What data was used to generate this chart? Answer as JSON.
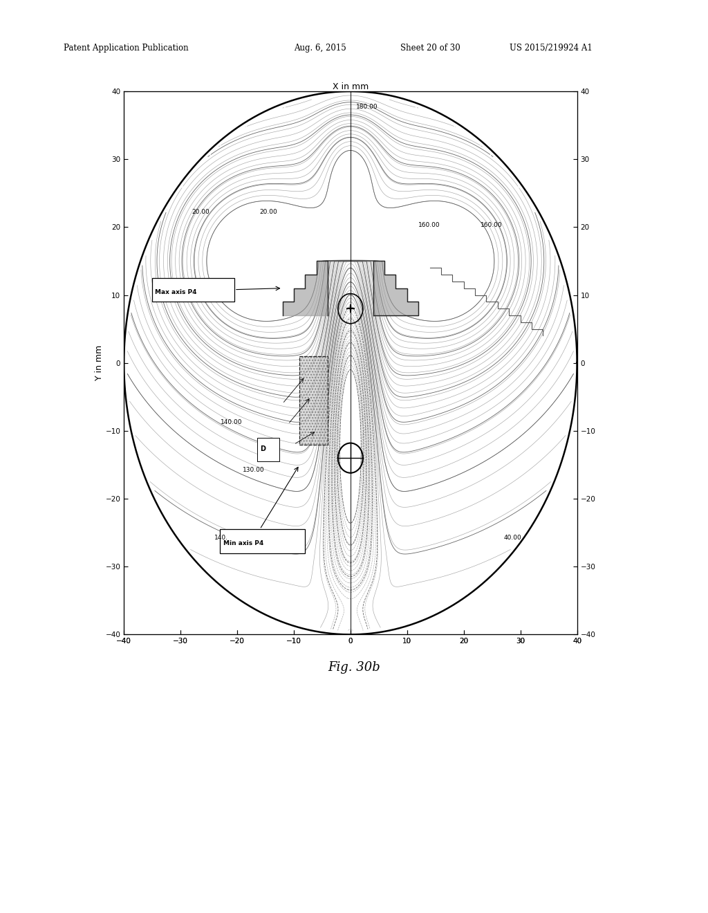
{
  "title_header": "Patent Application Publication",
  "date_header": "Aug. 6, 2015",
  "sheet_header": "Sheet 20 of 30",
  "patent_header": "US 2015/219924 A1",
  "fig_label": "Fig. 30b",
  "xlabel": "X in mm",
  "ylabel": "Y in mm",
  "xlim": [
    -40,
    40
  ],
  "ylim": [
    -40,
    40
  ],
  "xticks": [
    -40,
    -30,
    -20,
    -10,
    0,
    10,
    20,
    30,
    40
  ],
  "yticks": [
    -40,
    -30,
    -20,
    -10,
    0,
    10,
    20,
    30,
    40
  ],
  "background_color": "#ffffff",
  "max_axis_label": "Max axis P4",
  "min_axis_label": "Min axis P4",
  "contour_label_180": [
    1,
    37.5
  ],
  "contour_label_20a": [
    -28,
    22
  ],
  "contour_label_20b": [
    -16,
    22
  ],
  "contour_label_160a": [
    12,
    20
  ],
  "contour_label_160b": [
    23,
    20
  ],
  "contour_label_14060": [
    -23,
    -9
  ],
  "contour_label_130": [
    -19,
    -16
  ],
  "contour_label_140": [
    -24,
    -26
  ],
  "contour_label_40": [
    27,
    -26
  ],
  "label_D": [
    -16,
    -13
  ]
}
